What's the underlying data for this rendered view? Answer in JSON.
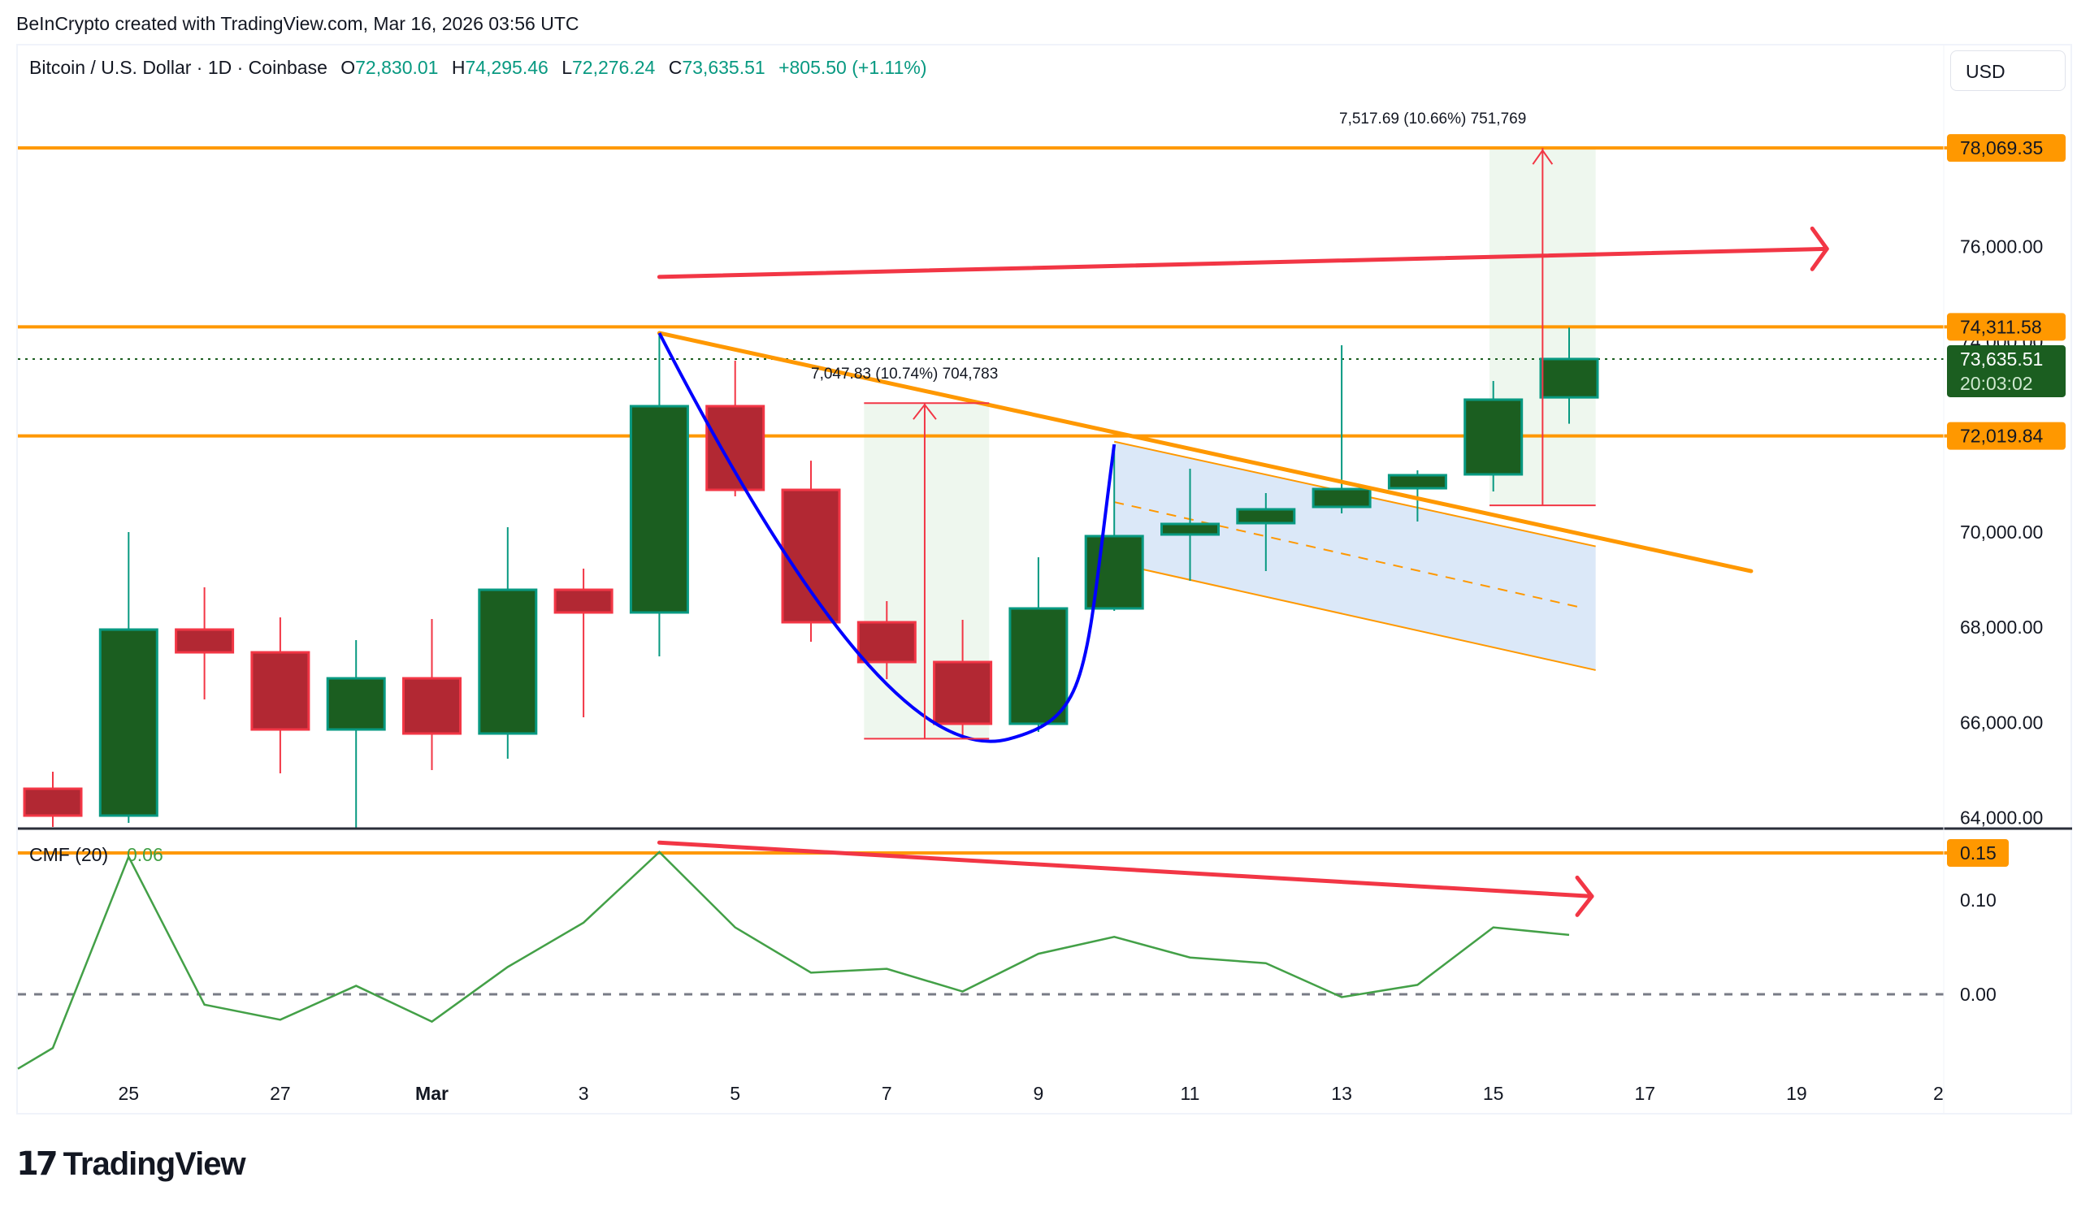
{
  "credit": "BeInCrypto created with TradingView.com, Mar 16, 2026 03:56 UTC",
  "header": {
    "symbol": "Bitcoin / U.S. Dollar · 1D · Coinbase",
    "open_label": "O",
    "open": "72,830.01",
    "high_label": "H",
    "high": "74,295.46",
    "low_label": "L",
    "low": "72,276.24",
    "close_label": "C",
    "close": "73,635.51",
    "change": "+805.50 (+1.11%)"
  },
  "currency_button": "USD",
  "colors": {
    "bull_body": "#1b5e20",
    "bull_border": "#089981",
    "bear_body": "#b22833",
    "bear_border": "#f23645",
    "level": "#ff9800",
    "arrow": "#f23645",
    "cup": "#0000ff",
    "cmf_line": "#43a047",
    "flag_fill": "#dbe8f8",
    "measure_fill": "#eef7ee",
    "last_price_bg": "#1b5e20",
    "axis_text": "#131722"
  },
  "price_axis": {
    "ticks": [
      "76,000.00",
      "74,000.00",
      "70,000.00",
      "68,000.00",
      "66,000.00",
      "64,000.00"
    ],
    "tick_values": [
      76000,
      74000,
      70000,
      68000,
      66000,
      64000
    ],
    "level_labels": [
      {
        "value": 78069.35,
        "text": "78,069.35"
      },
      {
        "value": 74311.58,
        "text": "74,311.58"
      },
      {
        "value": 72019.84,
        "text": "72,019.84"
      }
    ],
    "last_price": {
      "value": 73635.51,
      "text": "73,635.51",
      "countdown": "20:03:02"
    }
  },
  "cmf_pane": {
    "title": "CMF (20)",
    "value": "0.06",
    "ticks": [
      "0.10",
      "0.00"
    ],
    "tick_values": [
      0.1,
      0.0
    ],
    "level_label": {
      "value": 0.15,
      "text": "0.15"
    }
  },
  "time_axis": {
    "labels": [
      {
        "text": "25",
        "day": 1
      },
      {
        "text": "27",
        "day": 3
      },
      {
        "text": "Mar",
        "day": 5,
        "bold": true
      },
      {
        "text": "3",
        "day": 7
      },
      {
        "text": "5",
        "day": 9
      },
      {
        "text": "7",
        "day": 11
      },
      {
        "text": "9",
        "day": 13
      },
      {
        "text": "11",
        "day": 15
      },
      {
        "text": "13",
        "day": 17
      },
      {
        "text": "15",
        "day": 19
      },
      {
        "text": "17",
        "day": 21
      },
      {
        "text": "19",
        "day": 23
      },
      {
        "text": "2",
        "day": 24.87
      }
    ]
  },
  "annotations": {
    "measure1": "7,047.83 (10.74%) 704,783",
    "measure2": "7,517.69 (10.66%) 751,769"
  },
  "logo": {
    "mark": "17",
    "text": "TradingView"
  },
  "chart_data": {
    "type": "candlestick",
    "title": "Bitcoin / U.S. Dollar · 1D · Coinbase",
    "xlabel": "",
    "ylabel": "USD",
    "ylim": [
      63700,
      78800
    ],
    "categories": [
      "Feb 24",
      "Feb 25",
      "Feb 26",
      "Feb 27",
      "Feb 28",
      "Mar 1",
      "Mar 2",
      "Mar 3",
      "Mar 4",
      "Mar 5",
      "Mar 6",
      "Mar 7",
      "Mar 8",
      "Mar 9",
      "Mar 10",
      "Mar 11",
      "Mar 12",
      "Mar 13",
      "Mar 14",
      "Mar 15",
      "Mar 16"
    ],
    "ohlc": [
      [
        64608,
        64966,
        63806,
        64044
      ],
      [
        64044,
        70000,
        63890,
        67952
      ],
      [
        67952,
        68840,
        66485,
        67474
      ],
      [
        67474,
        68208,
        64932,
        65853
      ],
      [
        65853,
        67730,
        63771,
        66928
      ],
      [
        66928,
        68174,
        65000,
        65768
      ],
      [
        65768,
        70102,
        65239,
        68788
      ],
      [
        68788,
        69232,
        66109,
        68311
      ],
      [
        68311,
        74181,
        67389,
        72645
      ],
      [
        72645,
        73600,
        70750,
        70887
      ],
      [
        70887,
        71500,
        67696,
        68106
      ],
      [
        68106,
        68550,
        66911,
        67270
      ],
      [
        67270,
        68157,
        65700,
        65973
      ],
      [
        65973,
        69471,
        65802,
        68396
      ],
      [
        68396,
        71843,
        68345,
        69915
      ],
      [
        69949,
        71331,
        68976,
        70171
      ],
      [
        70188,
        70819,
        69181,
        70478
      ],
      [
        70529,
        73925,
        70392,
        70904
      ],
      [
        70921,
        71297,
        70222,
        71195
      ],
      [
        71212,
        73174,
        70853,
        72782
      ],
      [
        72830.01,
        74295.46,
        72276.24,
        73635.51
      ]
    ],
    "horizontal_levels": [
      78069.35,
      74311.58,
      72019.84
    ],
    "cmf": {
      "name": "CMF (20)",
      "pre_values": [
        -0.079
      ],
      "values": [
        -0.057,
        0.146,
        -0.011,
        -0.027,
        0.009,
        -0.029,
        0.029,
        0.076,
        0.151,
        0.071,
        0.023,
        0.027,
        0.003,
        0.043,
        0.061,
        0.039,
        0.033,
        -0.003,
        0.01,
        0.071,
        0.063
      ],
      "ylim": [
        -0.09,
        0.17
      ],
      "level": 0.15
    },
    "legend_position": "top-left",
    "grid": false
  }
}
